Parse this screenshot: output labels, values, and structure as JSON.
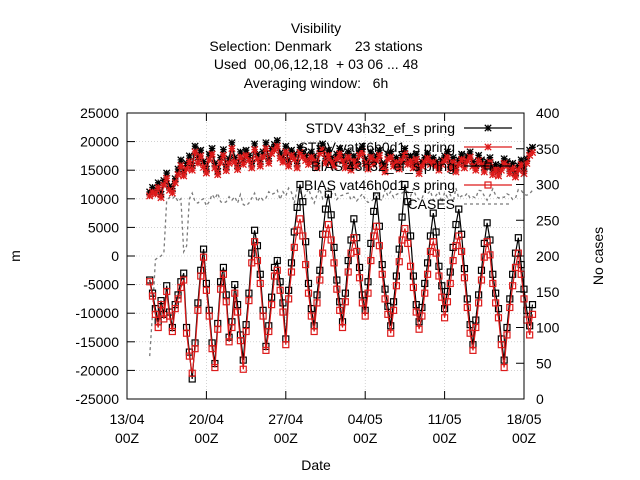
{
  "chart_data": {
    "type": "line",
    "title_lines": [
      "Visibility",
      "Selection: Denmark      23 stations",
      "Used  00,06,12,18  + 03 06 ... 48",
      "Averaging window:   6h"
    ],
    "xlabel": "Date",
    "ylabel": "m",
    "y2label": "No cases",
    "x_range": [
      "2024-04-13T00:00",
      "2024-05-18T00:00"
    ],
    "x_ticks": [
      {
        "t": "2024-04-13T00:00",
        "line1": "13/04",
        "line2": "00Z"
      },
      {
        "t": "2024-04-20T00:00",
        "line1": "20/04",
        "line2": "00Z"
      },
      {
        "t": "2024-04-27T00:00",
        "line1": "27/04",
        "line2": "00Z"
      },
      {
        "t": "2024-05-04T00:00",
        "line1": "04/05",
        "line2": "00Z"
      },
      {
        "t": "2024-05-11T00:00",
        "line1": "11/05",
        "line2": "00Z"
      },
      {
        "t": "2024-05-18T00:00",
        "line1": "18/05",
        "line2": "00Z"
      }
    ],
    "ylim": [
      -25000,
      25000
    ],
    "y_ticks": [
      -25000,
      -20000,
      -15000,
      -10000,
      -5000,
      0,
      5000,
      10000,
      15000,
      20000,
      25000
    ],
    "y2lim": [
      0,
      400
    ],
    "y2_ticks": [
      0,
      50,
      100,
      150,
      200,
      250,
      300,
      350,
      400
    ],
    "grid": true,
    "legend_position": "top-right",
    "series": [
      {
        "name": "STDV 43h32_ef_s pring",
        "color": "#000000",
        "marker": "star",
        "axis": "left",
        "x_start": "2024-04-15T00:00",
        "step_hours": 6,
        "values": [
          11200,
          12000,
          11500,
          12800,
          10800,
          13200,
          14500,
          12200,
          11800,
          13500,
          15200,
          16800,
          14800,
          16200,
          17500,
          15800,
          19200,
          17200,
          18500,
          16500,
          15200,
          17800,
          18800,
          16200,
          14800,
          17200,
          18600,
          15600,
          17000,
          19800,
          17200,
          15800,
          18200,
          16800,
          18500,
          17600,
          16200,
          19600,
          17800,
          16500,
          18200,
          19800,
          17000,
          18800,
          19500,
          20200,
          18000,
          17200,
          19200,
          16500,
          18500,
          17800,
          16200,
          19000,
          18200,
          17600,
          16800,
          18200,
          17500,
          16200,
          18800,
          19600,
          17000,
          18500,
          17200,
          16500,
          17800,
          18800,
          17500,
          16200,
          18200,
          15800,
          17500,
          16500,
          18500,
          19200,
          17000,
          16000,
          18200,
          16800,
          17500,
          18500,
          16200,
          15500,
          17800,
          18200,
          16500,
          17200,
          16000,
          17600,
          18800,
          16800,
          17500,
          16200,
          17800,
          15200,
          16500,
          17200,
          18000,
          16800,
          17200,
          16500,
          15800,
          16800,
          17500,
          18200,
          16000,
          17200,
          15500,
          16800,
          17800,
          16200,
          17500,
          18200,
          16500,
          15800,
          17600,
          16800,
          15500,
          16500,
          17200,
          15000,
          16000,
          14800,
          15800,
          17000,
          16500,
          15200,
          16200,
          14500,
          15800,
          16800,
          15200,
          17000,
          18500,
          19000
        ]
      },
      {
        "name": "STDV vat46h0d1_s pring",
        "color": "#dd1a1a",
        "marker": "star",
        "axis": "left",
        "x_start": "2024-04-15T00:00",
        "step_hours": 6,
        "values": [
          10500,
          11200,
          10800,
          12000,
          10200,
          12400,
          13600,
          11500,
          11000,
          12800,
          14200,
          15800,
          14000,
          15200,
          16500,
          15000,
          18200,
          16200,
          17500,
          15500,
          14500,
          16800,
          17800,
          15400,
          14200,
          16300,
          17600,
          14900,
          16200,
          18800,
          16400,
          15100,
          17300,
          16000,
          17600,
          16700,
          15400,
          18600,
          16900,
          15700,
          17300,
          18800,
          16200,
          17900,
          18500,
          19200,
          17100,
          16400,
          18200,
          15700,
          17600,
          16900,
          15400,
          18100,
          17300,
          16700,
          16000,
          17300,
          16600,
          15400,
          17900,
          18600,
          16200,
          17600,
          16400,
          15700,
          16900,
          17900,
          16600,
          15400,
          17300,
          15000,
          16600,
          15700,
          17600,
          18200,
          16200,
          15200,
          17300,
          16000,
          16600,
          17600,
          15400,
          14700,
          16900,
          17300,
          15700,
          16400,
          15200,
          16700,
          17900,
          16000,
          16600,
          15400,
          16900,
          14400,
          15700,
          16400,
          17100,
          16000,
          16400,
          15700,
          15000,
          16000,
          16600,
          17300,
          15200,
          16400,
          14700,
          16000,
          16900,
          15400,
          16600,
          17300,
          15700,
          15000,
          16700,
          16000,
          14700,
          15700,
          16400,
          14200,
          15200,
          14000,
          15000,
          16200,
          15700,
          14400,
          15400,
          13800,
          15000,
          16000,
          14400,
          16200,
          17600,
          18100
        ]
      },
      {
        "name": "BIAS 43h32_ef_s pring",
        "color": "#000000",
        "marker": "square",
        "axis": "left",
        "x_start": "2024-04-15T00:00",
        "step_hours": 6,
        "values": [
          -4200,
          -6500,
          -9200,
          -11500,
          -7800,
          -10200,
          -5200,
          -9800,
          -12500,
          -8500,
          -6800,
          -4500,
          -3000,
          -12500,
          -16800,
          -21500,
          -15200,
          -8200,
          -2500,
          1200,
          -4800,
          -9500,
          -15200,
          -18800,
          -11800,
          -4500,
          -2000,
          -6800,
          -14200,
          -11500,
          -5000,
          -8500,
          -13800,
          -18200,
          -12000,
          -6500,
          500,
          4500,
          1800,
          -3200,
          -9500,
          -15800,
          -12200,
          -7200,
          -2000,
          -800,
          -4500,
          -8200,
          -14500,
          -6000,
          -1200,
          4200,
          8500,
          12500,
          9500,
          2500,
          -4800,
          -9200,
          -12200,
          -6800,
          -2500,
          3800,
          8200,
          10800,
          7200,
          1500,
          -4200,
          -8000,
          -11500,
          -6500,
          -800,
          2800,
          6500,
          3200,
          -2000,
          -6800,
          -9500,
          -4500,
          2200,
          7800,
          10500,
          5200,
          -1500,
          -5800,
          -8800,
          -12200,
          -8000,
          -3500,
          1200,
          6800,
          12500,
          9500,
          3500,
          -3500,
          -8500,
          -11500,
          -9000,
          -4800,
          -1200,
          3500,
          7500,
          4200,
          -1800,
          -5200,
          -9200,
          -6200,
          -2800,
          1500,
          5500,
          8200,
          3800,
          -2200,
          -7500,
          -12000,
          -15500,
          -11200,
          -6800,
          -2500,
          2200,
          5800,
          2800,
          -3200,
          -6500,
          -9200,
          -14500,
          -18200,
          -12500,
          -7500,
          -3200,
          500,
          3200,
          -1500,
          -5800,
          -9500,
          -12200,
          -8500
        ]
      },
      {
        "name": "BIAS vat46h0d1_s pring",
        "color": "#dd1a1a",
        "marker": "square",
        "axis": "left",
        "x_start": "2024-04-15T00:00",
        "step_hours": 6,
        "values": [
          -4500,
          -7000,
          -10200,
          -12500,
          -8500,
          -11000,
          -6200,
          -10500,
          -13200,
          -9200,
          -7500,
          -5500,
          -4200,
          -13500,
          -17500,
          -20500,
          -16200,
          -9500,
          -3500,
          -200,
          -6000,
          -10500,
          -16200,
          -19500,
          -12800,
          -5800,
          -3200,
          -8000,
          -15000,
          -12500,
          -6500,
          -9800,
          -14800,
          -19800,
          -13200,
          -7800,
          -1200,
          2500,
          -800,
          -4800,
          -10500,
          -16500,
          -13200,
          -8500,
          -3500,
          -2500,
          -6000,
          -9800,
          -15500,
          -7500,
          -2800,
          1500,
          4500,
          6500,
          3500,
          -1500,
          -6500,
          -10500,
          -13200,
          -8200,
          -4200,
          500,
          3800,
          5500,
          2800,
          -1200,
          -5800,
          -9500,
          -12500,
          -8000,
          -2800,
          500,
          3200,
          800,
          -3800,
          -8200,
          -10500,
          -6500,
          -800,
          3500,
          5200,
          1800,
          -3200,
          -7500,
          -10200,
          -13500,
          -9500,
          -5200,
          -1000,
          2800,
          4800,
          2200,
          -1800,
          -5500,
          -9800,
          -12800,
          -10500,
          -6500,
          -3200,
          800,
          2500,
          500,
          -3500,
          -7200,
          -10800,
          -8000,
          -4800,
          -800,
          1800,
          3500,
          800,
          -3800,
          -9000,
          -13500,
          -16500,
          -12500,
          -8200,
          -4200,
          -200,
          2500,
          200,
          -4800,
          -8200,
          -10800,
          -15500,
          -19500,
          -13800,
          -9000,
          -5200,
          -2000,
          500,
          -3200,
          -7500,
          -11200,
          -13800,
          -10200
        ]
      },
      {
        "name": "CASES",
        "color": "#7a7a7a",
        "dashed": true,
        "axis": "right",
        "x_start": "2024-04-15T00:00",
        "step_hours": 6,
        "values": [
          60,
          120,
          195,
          198,
          200,
          205,
          278,
          282,
          280,
          284,
          276,
          280,
          206,
          214,
          280,
          288,
          276,
          274,
          278,
          280,
          270,
          276,
          286,
          280,
          288,
          276,
          274,
          276,
          283,
          278,
          283,
          274,
          286,
          272,
          270,
          274,
          281,
          288,
          276,
          283,
          278,
          281,
          290,
          286,
          288,
          292,
          279,
          290,
          284,
          295,
          289,
          274,
          294,
          290,
          279,
          286,
          294,
          283,
          274,
          286,
          294,
          280,
          285,
          292,
          285,
          294,
          279,
          284,
          285,
          287,
          288,
          279,
          283,
          277,
          282,
          287,
          279,
          275,
          276,
          280,
          294,
          279,
          278,
          293,
          284,
          290,
          282,
          286,
          288,
          288,
          291,
          290,
          284,
          294,
          283,
          279,
          280,
          291,
          287,
          291,
          278,
          285,
          290,
          275,
          289,
          282,
          286,
          275,
          295,
          281,
          284,
          283,
          288,
          281,
          283,
          281,
          292,
          291,
          284,
          278,
          285,
          294,
          285,
          281,
          283,
          282,
          287,
          285,
          279,
          281,
          293,
          292,
          286,
          285,
          287,
          292
        ]
      }
    ]
  }
}
